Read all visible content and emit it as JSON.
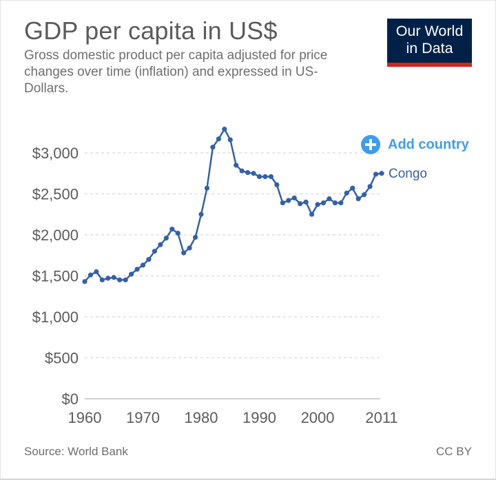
{
  "header": {
    "title": "GDP per capita in US$",
    "subtitle": "Gross domestic product per capita adjusted for price changes over time (inflation) and expressed in US-Dollars."
  },
  "logo": {
    "line1": "Our World",
    "line2": "in Data"
  },
  "controls": {
    "add_country_label": "Add country"
  },
  "footer": {
    "source": "Source: World Bank",
    "license": "CC BY"
  },
  "colors": {
    "series": "#3360a9",
    "accent": "#3d9cf0",
    "logo_bg": "#002147",
    "logo_bar": "#ce261e"
  },
  "chart_data": {
    "type": "line",
    "title": "GDP per capita in US$",
    "xlim": [
      1960,
      2011
    ],
    "ylim": [
      0,
      3000
    ],
    "x_ticks": [
      1960,
      1970,
      1980,
      1990,
      2000,
      2011
    ],
    "y_ticks": [
      0,
      500,
      1000,
      1500,
      2000,
      2500,
      3000
    ],
    "y_tick_labels": [
      "$0",
      "$500",
      "$1,000",
      "$1,500",
      "$2,000",
      "$2,500",
      "$3,000"
    ],
    "grid": "horizontal dashed",
    "series": [
      {
        "name": "Congo",
        "x": [
          1960,
          1961,
          1962,
          1963,
          1964,
          1965,
          1966,
          1967,
          1968,
          1969,
          1970,
          1971,
          1972,
          1973,
          1974,
          1975,
          1976,
          1977,
          1978,
          1979,
          1980,
          1981,
          1982,
          1983,
          1984,
          1985,
          1986,
          1987,
          1988,
          1989,
          1990,
          1991,
          1992,
          1993,
          1994,
          1995,
          1996,
          1997,
          1998,
          1999,
          2000,
          2001,
          2002,
          2003,
          2004,
          2005,
          2006,
          2007,
          2008,
          2009,
          2010,
          2011
        ],
        "values": [
          1430,
          1510,
          1550,
          1450,
          1470,
          1480,
          1450,
          1450,
          1520,
          1580,
          1630,
          1700,
          1800,
          1880,
          1960,
          2070,
          2020,
          1780,
          1840,
          1970,
          2250,
          2570,
          3070,
          3170,
          3290,
          3160,
          2850,
          2780,
          2760,
          2750,
          2710,
          2710,
          2710,
          2610,
          2390,
          2420,
          2450,
          2380,
          2400,
          2250,
          2370,
          2390,
          2440,
          2390,
          2390,
          2510,
          2570,
          2440,
          2490,
          2590,
          2740,
          2750
        ]
      }
    ]
  }
}
